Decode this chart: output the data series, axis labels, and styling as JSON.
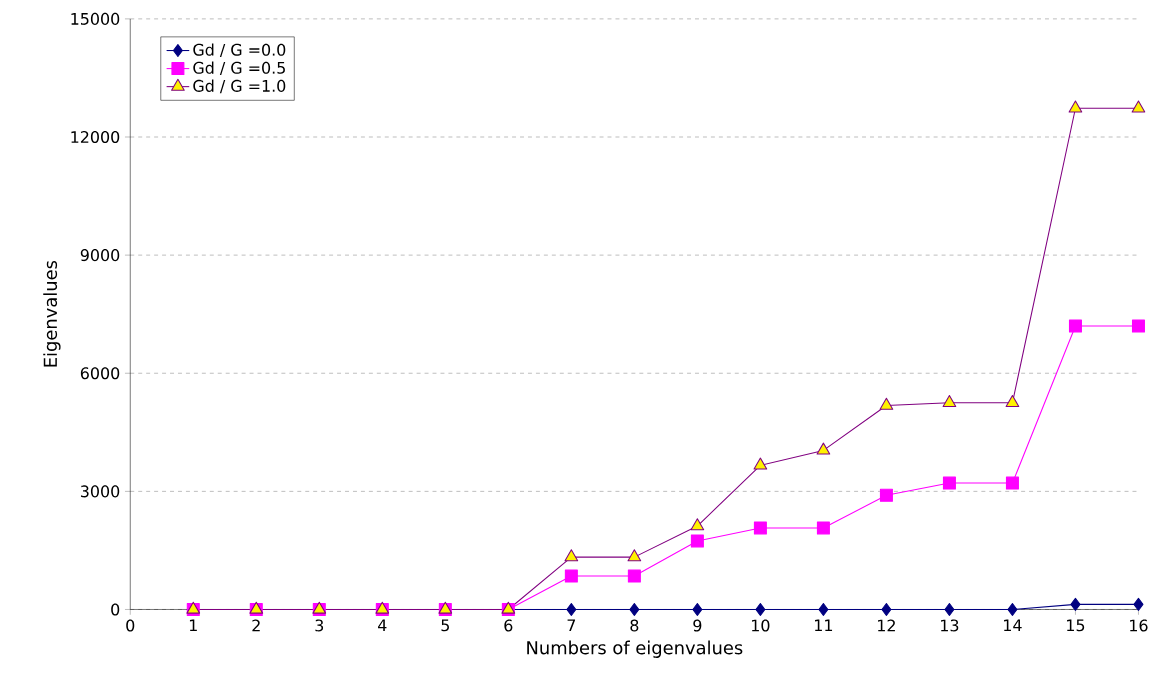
{
  "chart_data": {
    "type": "line",
    "xlabel": "Numbers of eigenvalues",
    "ylabel": "Eigenvalues",
    "x": [
      1,
      2,
      3,
      4,
      5,
      6,
      7,
      8,
      9,
      10,
      11,
      12,
      13,
      14,
      15,
      16
    ],
    "series": [
      {
        "name": "Gd / G =0.0",
        "color": "#000080",
        "marker": "diamond",
        "values": [
          null,
          null,
          null,
          null,
          0,
          0,
          0,
          0,
          0,
          0,
          0,
          0,
          0,
          0,
          130,
          130
        ]
      },
      {
        "name": "Gd / G =0.5",
        "color": "#ff00ff",
        "marker": "square",
        "values": [
          0,
          0,
          0,
          0,
          0,
          0,
          850,
          850,
          1740,
          2070,
          2070,
          2900,
          3210,
          3210,
          7200,
          7200
        ]
      },
      {
        "name": "Gd / G =1.0",
        "color": "#800080",
        "marker": "triangle",
        "values": [
          0,
          0,
          0,
          0,
          0,
          0,
          1330,
          1330,
          2120,
          3660,
          4040,
          5180,
          5250,
          5250,
          12730,
          12730
        ]
      }
    ],
    "xlim": [
      0,
      16
    ],
    "ylim": [
      0,
      15000
    ],
    "xticks": [
      0,
      1,
      2,
      3,
      4,
      5,
      6,
      7,
      8,
      9,
      10,
      11,
      12,
      13,
      14,
      15,
      16
    ],
    "yticks": [
      0,
      3000,
      6000,
      9000,
      12000,
      15000
    ],
    "grid": "y",
    "legend": "top left",
    "line_style": "solid"
  }
}
